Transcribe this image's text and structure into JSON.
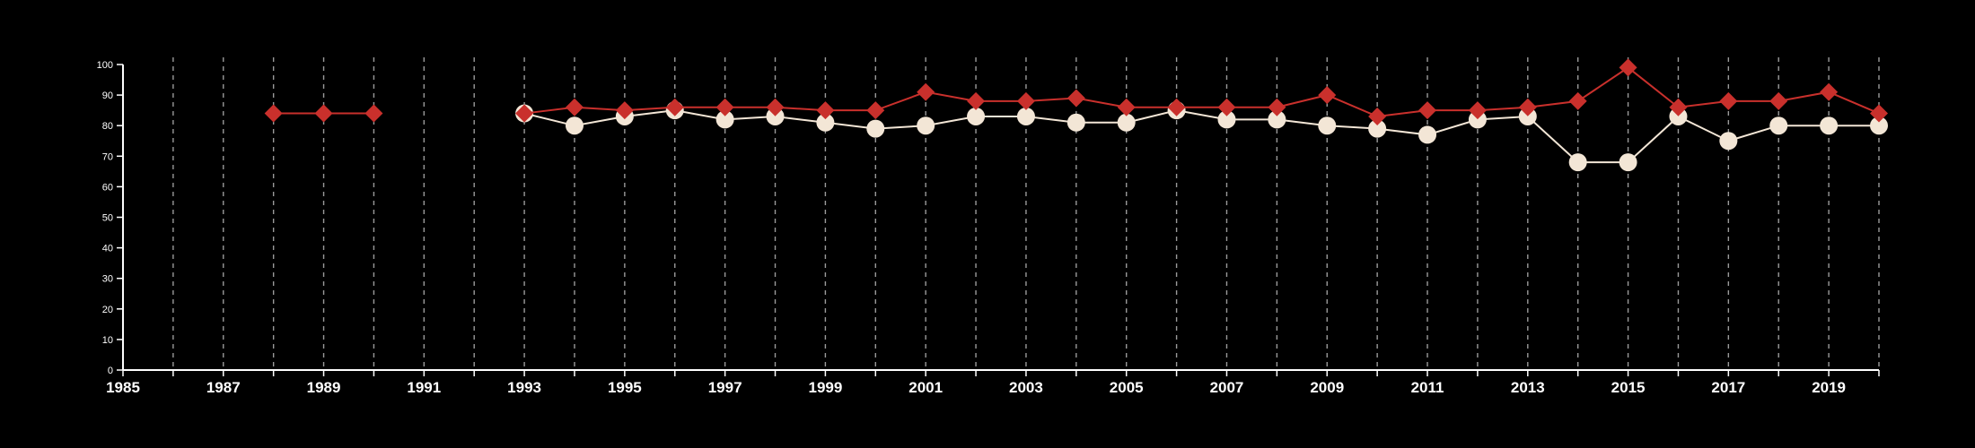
{
  "chart_data": {
    "type": "line",
    "title": "",
    "xlabel": "",
    "ylabel": "",
    "xlim": [
      1985,
      2020
    ],
    "ylim": [
      0,
      100
    ],
    "x_ticks": [
      "1985",
      "1987",
      "1989",
      "1991",
      "1993",
      "1995",
      "1997",
      "1999",
      "2001",
      "2003",
      "2005",
      "2007",
      "2009",
      "2011",
      "2013",
      "2015",
      "2017",
      "2019"
    ],
    "y_ticks": [
      "0",
      "10",
      "20",
      "30",
      "40",
      "50",
      "60",
      "70",
      "80",
      "90",
      "100"
    ],
    "grid": "vertical dashed at every year",
    "series": [
      {
        "color": "#f3e6d6",
        "marker": "circle",
        "points": [
          [
            1993,
            84
          ],
          [
            1994,
            80
          ],
          [
            1995,
            83
          ],
          [
            1996,
            85
          ],
          [
            1997,
            82
          ],
          [
            1998,
            83
          ],
          [
            1999,
            81
          ],
          [
            2000,
            79
          ],
          [
            2001,
            80
          ],
          [
            2002,
            83
          ],
          [
            2003,
            83
          ],
          [
            2004,
            81
          ],
          [
            2005,
            81
          ],
          [
            2006,
            85
          ],
          [
            2007,
            82
          ],
          [
            2008,
            82
          ],
          [
            2009,
            80
          ],
          [
            2010,
            79
          ],
          [
            2011,
            77
          ],
          [
            2012,
            82
          ],
          [
            2013,
            83
          ],
          [
            2014,
            68
          ],
          [
            2015,
            68
          ],
          [
            2016,
            83
          ],
          [
            2017,
            75
          ],
          [
            2018,
            80
          ],
          [
            2019,
            80
          ],
          [
            2020,
            80
          ]
        ]
      },
      {
        "color": "#c9302c",
        "marker": "diamond",
        "points": [
          [
            1988,
            84
          ],
          [
            1989,
            84
          ],
          [
            1990,
            84
          ],
          [
            1993,
            84
          ],
          [
            1994,
            86
          ],
          [
            1995,
            85
          ],
          [
            1996,
            86
          ],
          [
            1997,
            86
          ],
          [
            1998,
            86
          ],
          [
            1999,
            85
          ],
          [
            2000,
            85
          ],
          [
            2001,
            91
          ],
          [
            2002,
            88
          ],
          [
            2003,
            88
          ],
          [
            2004,
            89
          ],
          [
            2005,
            86
          ],
          [
            2006,
            86
          ],
          [
            2007,
            86
          ],
          [
            2008,
            86
          ],
          [
            2009,
            90
          ],
          [
            2010,
            83
          ],
          [
            2011,
            85
          ],
          [
            2012,
            85
          ],
          [
            2013,
            86
          ],
          [
            2014,
            88
          ],
          [
            2015,
            99
          ],
          [
            2016,
            86
          ],
          [
            2017,
            88
          ],
          [
            2018,
            88
          ],
          [
            2019,
            91
          ],
          [
            2020,
            84
          ]
        ]
      }
    ]
  }
}
